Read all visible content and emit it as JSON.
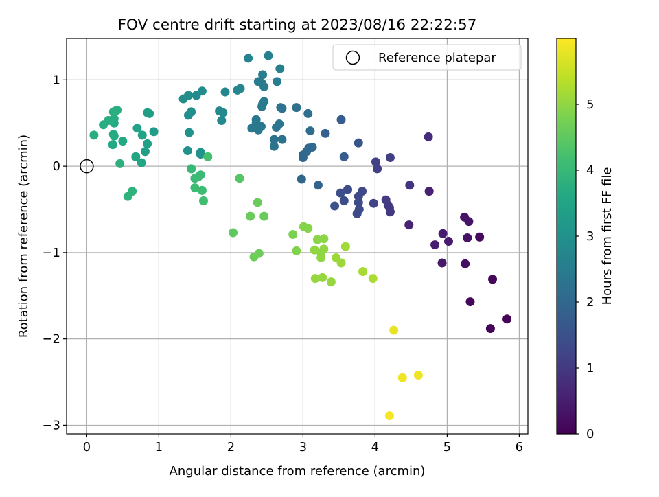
{
  "chart_data": {
    "type": "scatter",
    "title": "FOV centre drift starting at 2023/08/16 22:22:57",
    "xlabel": "Angular distance from reference (arcmin)",
    "ylabel": "Rotation from reference (arcmin)",
    "xlim": [
      -0.28,
      6.12
    ],
    "ylim": [
      -3.1,
      1.48
    ],
    "xticks": [
      0,
      1,
      2,
      3,
      4,
      5,
      6
    ],
    "yticks": [
      -3,
      -2,
      -1,
      0,
      1
    ],
    "xtick_labels": [
      "0",
      "1",
      "2",
      "3",
      "4",
      "5",
      "6"
    ],
    "ytick_labels": [
      "−3",
      "−2",
      "−1",
      "0",
      "1"
    ],
    "grid": true,
    "legend": {
      "position": "top-right",
      "entries": [
        "Reference platepar"
      ]
    },
    "reference_point": {
      "name": "Reference platepar",
      "x": 0,
      "y": 0
    },
    "colorbar": {
      "label": "Hours from first FF file",
      "colormap": "viridis",
      "range": [
        0,
        6
      ],
      "ticks": [
        0,
        1,
        2,
        3,
        4,
        5
      ],
      "tick_labels": [
        "0",
        "1",
        "2",
        "3",
        "4",
        "5"
      ]
    },
    "points": [
      {
        "x": 5.83,
        "y": -1.77,
        "c": 0.05
      },
      {
        "x": 5.6,
        "y": -1.88,
        "c": 0.05
      },
      {
        "x": 5.63,
        "y": -1.31,
        "c": 0.1
      },
      {
        "x": 5.32,
        "y": -1.57,
        "c": 0.1
      },
      {
        "x": 5.45,
        "y": -0.82,
        "c": 0.15
      },
      {
        "x": 5.25,
        "y": -1.13,
        "c": 0.2
      },
      {
        "x": 5.28,
        "y": -0.83,
        "c": 0.3
      },
      {
        "x": 5.3,
        "y": -0.64,
        "c": 0.35
      },
      {
        "x": 5.24,
        "y": -0.59,
        "c": 0.35
      },
      {
        "x": 4.93,
        "y": -1.12,
        "c": 0.4
      },
      {
        "x": 5.02,
        "y": -0.87,
        "c": 0.45
      },
      {
        "x": 4.94,
        "y": -0.78,
        "c": 0.45
      },
      {
        "x": 4.83,
        "y": -0.91,
        "c": 0.5
      },
      {
        "x": 4.75,
        "y": -0.29,
        "c": 0.55
      },
      {
        "x": 4.47,
        "y": -0.68,
        "c": 0.6
      },
      {
        "x": 4.74,
        "y": 0.34,
        "c": 0.75
      },
      {
        "x": 4.48,
        "y": -0.22,
        "c": 0.9
      },
      {
        "x": 4.21,
        "y": -0.53,
        "c": 1.0
      },
      {
        "x": 4.18,
        "y": -0.45,
        "c": 1.0
      },
      {
        "x": 4.2,
        "y": -0.48,
        "c": 1.0
      },
      {
        "x": 4.15,
        "y": -0.39,
        "c": 1.05
      },
      {
        "x": 4.21,
        "y": 0.1,
        "c": 1.1
      },
      {
        "x": 4.03,
        "y": -0.03,
        "c": 1.15
      },
      {
        "x": 4.01,
        "y": 0.05,
        "c": 1.15
      },
      {
        "x": 3.98,
        "y": -0.43,
        "c": 1.2
      },
      {
        "x": 3.82,
        "y": -0.29,
        "c": 1.3
      },
      {
        "x": 3.77,
        "y": -0.35,
        "c": 1.3
      },
      {
        "x": 3.77,
        "y": -0.42,
        "c": 1.35
      },
      {
        "x": 3.78,
        "y": -0.5,
        "c": 1.35
      },
      {
        "x": 3.75,
        "y": -0.55,
        "c": 1.35
      },
      {
        "x": 3.62,
        "y": -0.27,
        "c": 1.4
      },
      {
        "x": 3.57,
        "y": -0.4,
        "c": 1.4
      },
      {
        "x": 3.52,
        "y": -0.31,
        "c": 1.45
      },
      {
        "x": 3.44,
        "y": -0.46,
        "c": 1.5
      },
      {
        "x": 3.77,
        "y": 0.27,
        "c": 1.6
      },
      {
        "x": 3.57,
        "y": 0.11,
        "c": 1.7
      },
      {
        "x": 3.53,
        "y": 0.54,
        "c": 1.75
      },
      {
        "x": 3.31,
        "y": 0.38,
        "c": 1.85
      },
      {
        "x": 3.21,
        "y": -0.22,
        "c": 1.9
      },
      {
        "x": 2.98,
        "y": -0.15,
        "c": 2.0
      },
      {
        "x": 3.0,
        "y": 0.1,
        "c": 2.0
      },
      {
        "x": 3.0,
        "y": 0.13,
        "c": 2.0
      },
      {
        "x": 3.08,
        "y": 0.21,
        "c": 2.05
      },
      {
        "x": 3.13,
        "y": 0.22,
        "c": 2.05
      },
      {
        "x": 3.05,
        "y": 0.17,
        "c": 2.05
      },
      {
        "x": 3.1,
        "y": 0.41,
        "c": 2.1
      },
      {
        "x": 3.07,
        "y": 0.61,
        "c": 2.15
      },
      {
        "x": 2.91,
        "y": 0.68,
        "c": 2.2
      },
      {
        "x": 2.71,
        "y": 0.67,
        "c": 2.25
      },
      {
        "x": 2.69,
        "y": 0.68,
        "c": 2.25
      },
      {
        "x": 2.71,
        "y": 0.31,
        "c": 2.3
      },
      {
        "x": 2.6,
        "y": 0.31,
        "c": 2.3
      },
      {
        "x": 2.6,
        "y": 0.23,
        "c": 2.3
      },
      {
        "x": 2.67,
        "y": 0.49,
        "c": 2.35
      },
      {
        "x": 2.63,
        "y": 0.45,
        "c": 2.35
      },
      {
        "x": 2.42,
        "y": 0.46,
        "c": 2.4
      },
      {
        "x": 2.35,
        "y": 0.44,
        "c": 2.4
      },
      {
        "x": 2.38,
        "y": 0.42,
        "c": 2.4
      },
      {
        "x": 2.29,
        "y": 0.44,
        "c": 2.4
      },
      {
        "x": 2.35,
        "y": 0.5,
        "c": 2.4
      },
      {
        "x": 2.35,
        "y": 0.54,
        "c": 2.4
      },
      {
        "x": 2.43,
        "y": 0.69,
        "c": 2.45
      },
      {
        "x": 2.46,
        "y": 0.75,
        "c": 2.45
      },
      {
        "x": 2.44,
        "y": 0.72,
        "c": 2.45
      },
      {
        "x": 2.46,
        "y": 0.92,
        "c": 2.5
      },
      {
        "x": 2.38,
        "y": 0.98,
        "c": 2.5
      },
      {
        "x": 2.43,
        "y": 0.96,
        "c": 2.5
      },
      {
        "x": 2.44,
        "y": 1.06,
        "c": 2.55
      },
      {
        "x": 2.64,
        "y": 0.98,
        "c": 2.55
      },
      {
        "x": 2.68,
        "y": 1.13,
        "c": 2.6
      },
      {
        "x": 2.52,
        "y": 1.28,
        "c": 2.6
      },
      {
        "x": 2.24,
        "y": 1.25,
        "c": 2.65
      },
      {
        "x": 2.13,
        "y": 0.9,
        "c": 2.7
      },
      {
        "x": 2.09,
        "y": 0.88,
        "c": 2.7
      },
      {
        "x": 1.92,
        "y": 0.86,
        "c": 2.75
      },
      {
        "x": 1.89,
        "y": 0.62,
        "c": 2.8
      },
      {
        "x": 1.84,
        "y": 0.64,
        "c": 2.8
      },
      {
        "x": 1.87,
        "y": 0.53,
        "c": 2.8
      },
      {
        "x": 1.6,
        "y": 0.87,
        "c": 2.85
      },
      {
        "x": 1.52,
        "y": 0.82,
        "c": 2.85
      },
      {
        "x": 1.41,
        "y": 0.82,
        "c": 2.9
      },
      {
        "x": 1.34,
        "y": 0.78,
        "c": 2.9
      },
      {
        "x": 1.45,
        "y": 0.63,
        "c": 2.95
      },
      {
        "x": 1.41,
        "y": 0.59,
        "c": 2.95
      },
      {
        "x": 1.42,
        "y": 0.39,
        "c": 3.0
      },
      {
        "x": 1.4,
        "y": 0.18,
        "c": 3.0
      },
      {
        "x": 1.58,
        "y": 0.16,
        "c": 3.05
      },
      {
        "x": 1.58,
        "y": 0.14,
        "c": 3.05
      },
      {
        "x": 0.93,
        "y": 0.4,
        "c": 3.3
      },
      {
        "x": 0.87,
        "y": 0.61,
        "c": 3.35
      },
      {
        "x": 0.84,
        "y": 0.62,
        "c": 3.35
      },
      {
        "x": 0.84,
        "y": 0.26,
        "c": 3.4
      },
      {
        "x": 0.81,
        "y": 0.17,
        "c": 3.4
      },
      {
        "x": 0.77,
        "y": 0.36,
        "c": 3.45
      },
      {
        "x": 0.7,
        "y": 0.44,
        "c": 3.45
      },
      {
        "x": 0.68,
        "y": 0.11,
        "c": 3.5
      },
      {
        "x": 0.76,
        "y": 0.04,
        "c": 3.55
      },
      {
        "x": 0.5,
        "y": 0.29,
        "c": 3.6
      },
      {
        "x": 0.36,
        "y": 0.25,
        "c": 3.6
      },
      {
        "x": 0.38,
        "y": 0.35,
        "c": 3.6
      },
      {
        "x": 0.37,
        "y": 0.37,
        "c": 3.65
      },
      {
        "x": 0.38,
        "y": 0.5,
        "c": 3.65
      },
      {
        "x": 0.38,
        "y": 0.55,
        "c": 3.65
      },
      {
        "x": 0.3,
        "y": 0.53,
        "c": 3.7
      },
      {
        "x": 0.34,
        "y": 0.53,
        "c": 3.7
      },
      {
        "x": 0.23,
        "y": 0.48,
        "c": 3.7
      },
      {
        "x": 0.37,
        "y": 0.63,
        "c": 3.75
      },
      {
        "x": 0.42,
        "y": 0.65,
        "c": 3.75
      },
      {
        "x": 0.4,
        "y": 0.64,
        "c": 3.75
      },
      {
        "x": 0.1,
        "y": 0.36,
        "c": 3.75
      },
      {
        "x": 0.46,
        "y": 0.03,
        "c": 3.8
      },
      {
        "x": 0.63,
        "y": -0.29,
        "c": 3.85
      },
      {
        "x": 0.57,
        "y": -0.35,
        "c": 3.85
      },
      {
        "x": 1.45,
        "y": -0.03,
        "c": 4.0
      },
      {
        "x": 1.5,
        "y": -0.14,
        "c": 4.05
      },
      {
        "x": 1.55,
        "y": -0.12,
        "c": 4.05
      },
      {
        "x": 1.58,
        "y": -0.1,
        "c": 4.05
      },
      {
        "x": 1.5,
        "y": -0.25,
        "c": 4.1
      },
      {
        "x": 1.6,
        "y": -0.28,
        "c": 4.1
      },
      {
        "x": 1.62,
        "y": -0.4,
        "c": 4.15
      },
      {
        "x": 1.68,
        "y": 0.11,
        "c": 4.2
      },
      {
        "x": 2.12,
        "y": -0.14,
        "c": 4.4
      },
      {
        "x": 2.03,
        "y": -0.77,
        "c": 4.5
      },
      {
        "x": 2.37,
        "y": -0.42,
        "c": 4.6
      },
      {
        "x": 2.27,
        "y": -0.58,
        "c": 4.6
      },
      {
        "x": 2.46,
        "y": -0.58,
        "c": 4.6
      },
      {
        "x": 2.39,
        "y": -1.01,
        "c": 4.65
      },
      {
        "x": 2.32,
        "y": -1.05,
        "c": 4.65
      },
      {
        "x": 2.86,
        "y": -0.79,
        "c": 4.8
      },
      {
        "x": 2.91,
        "y": -0.98,
        "c": 4.85
      },
      {
        "x": 3.01,
        "y": -0.7,
        "c": 4.9
      },
      {
        "x": 3.07,
        "y": -0.72,
        "c": 4.9
      },
      {
        "x": 3.2,
        "y": -0.85,
        "c": 4.95
      },
      {
        "x": 3.29,
        "y": -0.84,
        "c": 4.95
      },
      {
        "x": 3.16,
        "y": -0.97,
        "c": 5.0
      },
      {
        "x": 3.25,
        "y": -1.0,
        "c": 5.0
      },
      {
        "x": 3.29,
        "y": -0.96,
        "c": 5.0
      },
      {
        "x": 3.25,
        "y": -1.06,
        "c": 5.0
      },
      {
        "x": 3.17,
        "y": -1.3,
        "c": 5.05
      },
      {
        "x": 3.27,
        "y": -1.29,
        "c": 5.05
      },
      {
        "x": 3.39,
        "y": -1.34,
        "c": 5.05
      },
      {
        "x": 3.46,
        "y": -1.06,
        "c": 5.1
      },
      {
        "x": 3.53,
        "y": -1.12,
        "c": 5.1
      },
      {
        "x": 3.59,
        "y": -0.93,
        "c": 5.15
      },
      {
        "x": 3.83,
        "y": -1.22,
        "c": 5.2
      },
      {
        "x": 3.97,
        "y": -1.3,
        "c": 5.25
      },
      {
        "x": 4.26,
        "y": -1.9,
        "c": 5.8
      },
      {
        "x": 4.38,
        "y": -2.45,
        "c": 5.85
      },
      {
        "x": 4.6,
        "y": -2.42,
        "c": 5.85
      },
      {
        "x": 4.2,
        "y": -2.89,
        "c": 5.9
      }
    ]
  }
}
